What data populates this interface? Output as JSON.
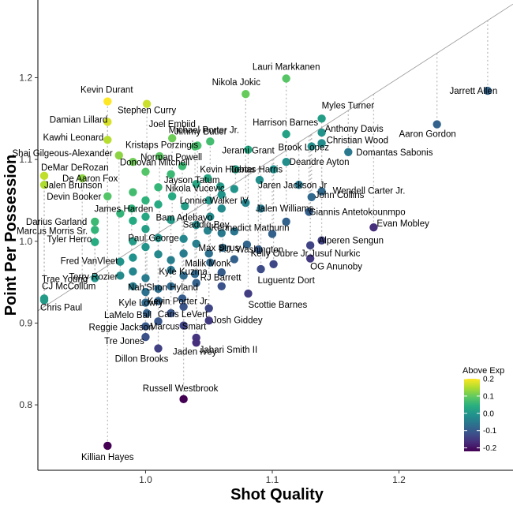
{
  "chart_data": {
    "type": "scatter",
    "title": "",
    "xlabel": "Shot Quality",
    "ylabel": "Point Per Possession",
    "xlim": [
      0.915,
      1.29
    ],
    "ylim": [
      0.72,
      1.295
    ],
    "x_ticks": [
      "1.0",
      "1.1",
      "1.2"
    ],
    "x_tick_values": [
      1.0,
      1.1,
      1.2
    ],
    "y_ticks": [
      "0.8",
      "0.9",
      "1.0",
      "1.1",
      "1.2"
    ],
    "y_tick_values": [
      0.8,
      0.9,
      1.0,
      1.1,
      1.2
    ],
    "grid": false,
    "reference_line": "y = x",
    "legend": {
      "title": "Above Exp",
      "position": "right",
      "ticks": [
        "0.2",
        "0.1",
        "0.0",
        "-0.1",
        "-0.2"
      ],
      "tick_values": [
        0.2,
        0.1,
        0.0,
        -0.1,
        -0.2
      ],
      "range": [
        -0.22,
        0.2
      ]
    },
    "colors": {
      "viridis": [
        "#440154",
        "#472d7b",
        "#3b528b",
        "#2c728e",
        "#21918c",
        "#28ae80",
        "#5ec962",
        "#addc30",
        "#fde725"
      ],
      "reference_line": "#9a9a9a",
      "dotted_line": "#bdbdbd"
    },
    "labeled_points": [
      {
        "name": "Lauri Markkanen",
        "x": 1.111,
        "y": 1.199
      },
      {
        "name": "Nikola Jokic",
        "x": 1.079,
        "y": 1.18
      },
      {
        "name": "Jarrett Allen",
        "x": 1.27,
        "y": 1.184
      },
      {
        "name": "Kevin Durant",
        "x": 0.97,
        "y": 1.171
      },
      {
        "name": "Stephen Curry",
        "x": 1.001,
        "y": 1.168
      },
      {
        "name": "Myles Turner",
        "x": 1.139,
        "y": 1.15
      },
      {
        "name": "Damian Lillard",
        "x": 0.97,
        "y": 1.146
      },
      {
        "name": "Joel Embiid",
        "x": 1.021,
        "y": 1.126
      },
      {
        "name": "Jimmy Butler",
        "x": 1.041,
        "y": 1.117
      },
      {
        "name": "Harrison Barnes",
        "x": 1.111,
        "y": 1.131
      },
      {
        "name": "Anthony Davis",
        "x": 1.139,
        "y": 1.133
      },
      {
        "name": "Aaron Gordon",
        "x": 1.23,
        "y": 1.143
      },
      {
        "name": "Michael Porter Jr.",
        "x": 1.051,
        "y": 1.122
      },
      {
        "name": "Christian Wood",
        "x": 1.139,
        "y": 1.12
      },
      {
        "name": "Kawhi Leonard",
        "x": 0.97,
        "y": 1.124
      },
      {
        "name": "Kristaps Porzingis",
        "x": 1.039,
        "y": 1.116
      },
      {
        "name": "Jerami Grant",
        "x": 1.081,
        "y": 1.112
      },
      {
        "name": "Brook Lopez",
        "x": 1.131,
        "y": 1.116
      },
      {
        "name": "Domantas Sabonis",
        "x": 1.16,
        "y": 1.109
      },
      {
        "name": "Shai Gilgeous-Alexander",
        "x": 0.979,
        "y": 1.105
      },
      {
        "name": "Norman Powell",
        "x": 1.011,
        "y": 1.104
      },
      {
        "name": "Deandre Ayton",
        "x": 1.111,
        "y": 1.097
      },
      {
        "name": "DeMar DeRozan",
        "x": 0.92,
        "y": 1.08
      },
      {
        "name": "Donovan Mitchell",
        "x": 1.029,
        "y": 1.092
      },
      {
        "name": "Kevin Huerter",
        "x": 1.071,
        "y": 1.088
      },
      {
        "name": "Tobias Harris",
        "x": 1.101,
        "y": 1.088
      },
      {
        "name": "Jayson Tatum",
        "x": 1.049,
        "y": 1.077
      },
      {
        "name": "De Aaron Fox",
        "x": 0.95,
        "y": 1.077
      },
      {
        "name": "Jaren Jackson Jr",
        "x": 1.121,
        "y": 1.069
      },
      {
        "name": "Jalen Brunson",
        "x": 0.92,
        "y": 1.069
      },
      {
        "name": "Nikola Vucevic",
        "x": 1.059,
        "y": 1.067
      },
      {
        "name": "Wendell Carter Jr.",
        "x": 1.139,
        "y": 1.061
      },
      {
        "name": "John Collins",
        "x": 1.131,
        "y": 1.054
      },
      {
        "name": "Devin Booker",
        "x": 0.97,
        "y": 1.055
      },
      {
        "name": "Lonnie Walker IV",
        "x": 1.079,
        "y": 1.047
      },
      {
        "name": "James Harden",
        "x": 0.989,
        "y": 1.04
      },
      {
        "name": "Giannis Antetokounmpo",
        "x": 1.129,
        "y": 1.036
      },
      {
        "name": "Bam Adebayo",
        "x": 1.051,
        "y": 1.03
      },
      {
        "name": "Jalen Williams",
        "x": 1.111,
        "y": 1.024
      },
      {
        "name": "Darius Garland",
        "x": 0.96,
        "y": 1.024
      },
      {
        "name": "Evan Mobley",
        "x": 1.18,
        "y": 1.017
      },
      {
        "name": "Saddiq Bey",
        "x": 1.049,
        "y": 1.013
      },
      {
        "name": "Marcus Morris Sr.",
        "x": 0.96,
        "y": 1.014
      },
      {
        "name": "Kennedict Mathurin",
        "x": 1.1,
        "y": 1.009
      },
      {
        "name": "Alperen Sengun",
        "x": 1.139,
        "y": 1.001
      },
      {
        "name": "Paul George",
        "x": 1.01,
        "y": 1.004
      },
      {
        "name": "Tyler Herro",
        "x": 0.96,
        "y": 0.999
      },
      {
        "name": "P.J. Washington",
        "x": 1.089,
        "y": 0.99
      },
      {
        "name": "Max Strus",
        "x": 1.061,
        "y": 0.992
      },
      {
        "name": "Jusuf Nurkic",
        "x": 1.13,
        "y": 0.995
      },
      {
        "name": "Fred VanVleet",
        "x": 0.98,
        "y": 0.975
      },
      {
        "name": "Malik Monk",
        "x": 1.051,
        "y": 0.974
      },
      {
        "name": "Kelly Oubre Jr.",
        "x": 1.101,
        "y": 0.972
      },
      {
        "name": "OG Anunoby",
        "x": 1.13,
        "y": 0.979
      },
      {
        "name": "Luguentz Dort",
        "x": 1.091,
        "y": 0.966
      },
      {
        "name": "Kyle Kuzma",
        "x": 1.039,
        "y": 0.96
      },
      {
        "name": "Trae Young",
        "x": 0.96,
        "y": 0.955
      },
      {
        "name": "Terry Rozier",
        "x": 0.98,
        "y": 0.958
      },
      {
        "name": "Nah'Shon Hyland",
        "x": 1.01,
        "y": 0.942
      },
      {
        "name": "RJ Barrett",
        "x": 1.04,
        "y": 0.949
      },
      {
        "name": "CJ McCollum",
        "x": 0.92,
        "y": 0.93
      },
      {
        "name": "Scottie Barnes",
        "x": 1.081,
        "y": 0.936
      },
      {
        "name": "Kevin Porter Jr.",
        "x": 1.029,
        "y": 0.93
      },
      {
        "name": "Kyle Lowry",
        "x": 1.01,
        "y": 0.927
      },
      {
        "name": "Chris Paul",
        "x": 0.92,
        "y": 0.928
      },
      {
        "name": "LaMelo Ball",
        "x": 1.001,
        "y": 0.912
      },
      {
        "name": "Caris LeVert",
        "x": 1.02,
        "y": 0.912
      },
      {
        "name": "Josh Giddey",
        "x": 1.05,
        "y": 0.903
      },
      {
        "name": "Reggie Jackson",
        "x": 1.0,
        "y": 0.896
      },
      {
        "name": "Marcus Smart",
        "x": 1.03,
        "y": 0.897
      },
      {
        "name": "Jabari Smith II",
        "x": 1.04,
        "y": 0.882
      },
      {
        "name": "Tre Jones",
        "x": 1.0,
        "y": 0.883
      },
      {
        "name": "Jaden Ivey",
        "x": 1.04,
        "y": 0.876
      },
      {
        "name": "Dillon Brooks",
        "x": 1.01,
        "y": 0.869
      },
      {
        "name": "Russell Westbrook",
        "x": 1.03,
        "y": 0.807
      },
      {
        "name": "Killian Hayes",
        "x": 0.97,
        "y": 0.75
      }
    ],
    "unlabeled_points": [
      {
        "x": 0.99,
        "y": 1.097
      },
      {
        "x": 1.0,
        "y": 1.085
      },
      {
        "x": 1.02,
        "y": 1.082
      },
      {
        "x": 1.04,
        "y": 1.07
      },
      {
        "x": 0.99,
        "y": 1.06
      },
      {
        "x": 1.0,
        "y": 1.05
      },
      {
        "x": 1.01,
        "y": 1.045
      },
      {
        "x": 1.021,
        "y": 1.055
      },
      {
        "x": 1.031,
        "y": 1.043
      },
      {
        "x": 1.06,
        "y": 1.057
      },
      {
        "x": 1.07,
        "y": 1.064
      },
      {
        "x": 1.09,
        "y": 1.075
      },
      {
        "x": 0.98,
        "y": 1.034
      },
      {
        "x": 0.99,
        "y": 1.025
      },
      {
        "x": 1.0,
        "y": 1.03
      },
      {
        "x": 1.02,
        "y": 1.026
      },
      {
        "x": 1.04,
        "y": 1.02
      },
      {
        "x": 1.06,
        "y": 1.04
      },
      {
        "x": 1.07,
        "y": 1.012
      },
      {
        "x": 1.091,
        "y": 1.04
      },
      {
        "x": 0.99,
        "y": 1.0
      },
      {
        "x": 1.0,
        "y": 0.993
      },
      {
        "x": 1.03,
        "y": 1.003
      },
      {
        "x": 1.04,
        "y": 0.997
      },
      {
        "x": 1.06,
        "y": 1.01
      },
      {
        "x": 1.08,
        "y": 0.996
      },
      {
        "x": 0.99,
        "y": 0.98
      },
      {
        "x": 1.01,
        "y": 0.984
      },
      {
        "x": 1.02,
        "y": 0.977
      },
      {
        "x": 1.03,
        "y": 0.985
      },
      {
        "x": 1.05,
        "y": 0.985
      },
      {
        "x": 1.07,
        "y": 0.978
      },
      {
        "x": 0.99,
        "y": 0.963
      },
      {
        "x": 1.0,
        "y": 0.955
      },
      {
        "x": 1.02,
        "y": 0.965
      },
      {
        "x": 1.03,
        "y": 0.958
      },
      {
        "x": 1.06,
        "y": 0.962
      },
      {
        "x": 0.99,
        "y": 0.945
      },
      {
        "x": 1.0,
        "y": 0.938
      },
      {
        "x": 1.02,
        "y": 0.945
      },
      {
        "x": 1.06,
        "y": 0.945
      },
      {
        "x": 1.0,
        "y": 0.925
      },
      {
        "x": 1.03,
        "y": 0.92
      },
      {
        "x": 1.05,
        "y": 0.918
      },
      {
        "x": 1.01,
        "y": 0.902
      },
      {
        "x": 1.0,
        "y": 1.015
      },
      {
        "x": 1.01,
        "y": 1.066
      },
      {
        "x": 1.05,
        "y": 1.05
      }
    ]
  }
}
